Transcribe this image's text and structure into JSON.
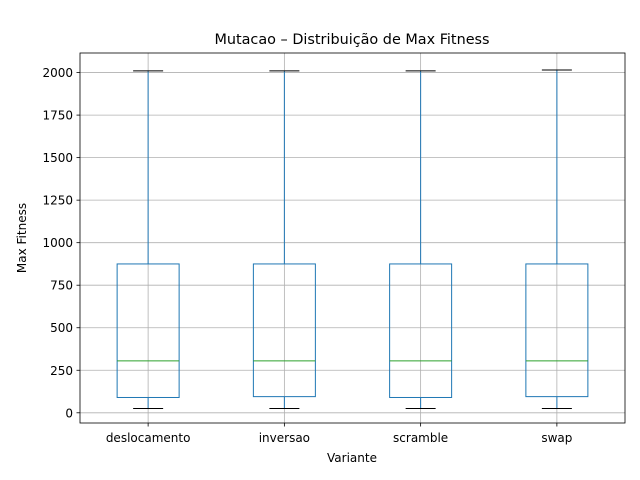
{
  "chart_data": {
    "type": "boxplot",
    "title": "Mutacao – Distribuição de Max Fitness",
    "xlabel": "Variante",
    "ylabel": "Max Fitness",
    "ylim": [
      -60,
      2115
    ],
    "yticks": [
      0,
      250,
      500,
      750,
      1000,
      1250,
      1500,
      1750,
      2000
    ],
    "grid": true,
    "categories": [
      "deslocamento",
      "inversao",
      "scramble",
      "swap"
    ],
    "boxes": [
      {
        "category": "deslocamento",
        "whisker_low": 25,
        "q1": 90,
        "median": 305,
        "q3": 875,
        "whisker_high": 2010
      },
      {
        "category": "inversao",
        "whisker_low": 25,
        "q1": 95,
        "median": 305,
        "q3": 875,
        "whisker_high": 2010
      },
      {
        "category": "scramble",
        "whisker_low": 25,
        "q1": 90,
        "median": 305,
        "q3": 875,
        "whisker_high": 2010
      },
      {
        "category": "swap",
        "whisker_low": 25,
        "q1": 95,
        "median": 305,
        "q3": 875,
        "whisker_high": 2015
      }
    ],
    "colors": {
      "box": "#1f77b4",
      "median": "#2ca02c",
      "cap": "#000000",
      "grid": "#b0b0b0"
    }
  }
}
